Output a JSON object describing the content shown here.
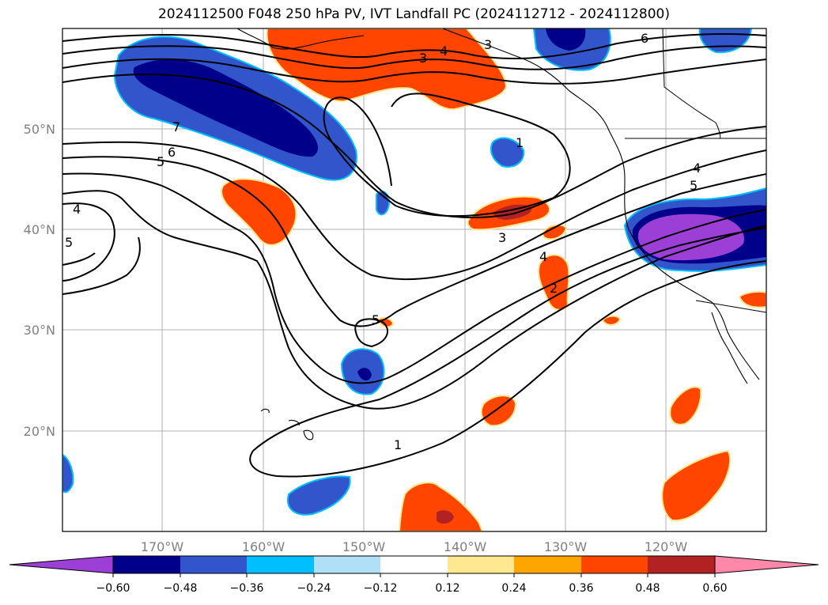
{
  "title": "2024112500 F048 250 hPa PV, IVT Landfall PC (2024112712 - 2024112800)",
  "map": {
    "lon_labels": [
      "170°W",
      "160°W",
      "150°W",
      "140°W",
      "130°W",
      "120°W"
    ],
    "lat_labels": [
      "50°N",
      "40°N",
      "30°N",
      "20°N"
    ],
    "contour_labels": [
      "7",
      "6",
      "5",
      "4",
      "5",
      "3",
      "4",
      "3",
      "1",
      "3",
      "4",
      "2",
      "5",
      "1",
      "4",
      "5",
      "6"
    ]
  },
  "colorbar": {
    "ticks": [
      "−0.60",
      "−0.48",
      "−0.36",
      "−0.24",
      "−0.12",
      "0.12",
      "0.24",
      "0.36",
      "0.48",
      "0.60"
    ],
    "colors": [
      "#9b3fd6",
      "#00008b",
      "#3355cc",
      "#00bfff",
      "#b0e0f8",
      "#ffffff",
      "#ffe890",
      "#ffa500",
      "#ff4500",
      "#b22222",
      "#ff88aa"
    ]
  }
}
